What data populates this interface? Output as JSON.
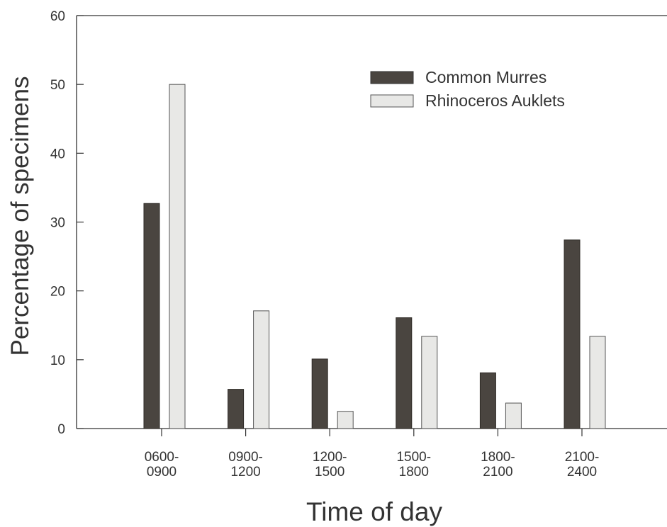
{
  "chart_data": {
    "type": "bar",
    "title": "",
    "xlabel": "Time of day",
    "ylabel": "Percentage of specimens",
    "ylim": [
      0,
      60
    ],
    "yticks": [
      0,
      10,
      20,
      30,
      40,
      50,
      60
    ],
    "categories": [
      [
        "0600-",
        "0900"
      ],
      [
        "0900-",
        "1200"
      ],
      [
        "1200-",
        "1500"
      ],
      [
        "1500-",
        "1800"
      ],
      [
        "1800-",
        "2100"
      ],
      [
        "2100-",
        "2400"
      ]
    ],
    "series": [
      {
        "name": "Common Murres",
        "values": [
          32.7,
          5.7,
          10.1,
          16.1,
          8.1,
          27.4
        ],
        "color": "#4a4540"
      },
      {
        "name": "Rhinoceros Auklets",
        "values": [
          50.0,
          17.1,
          2.5,
          13.4,
          3.7,
          13.4
        ],
        "color": "#e8e8e6"
      }
    ],
    "grid": false,
    "legend_position": "top-right"
  }
}
